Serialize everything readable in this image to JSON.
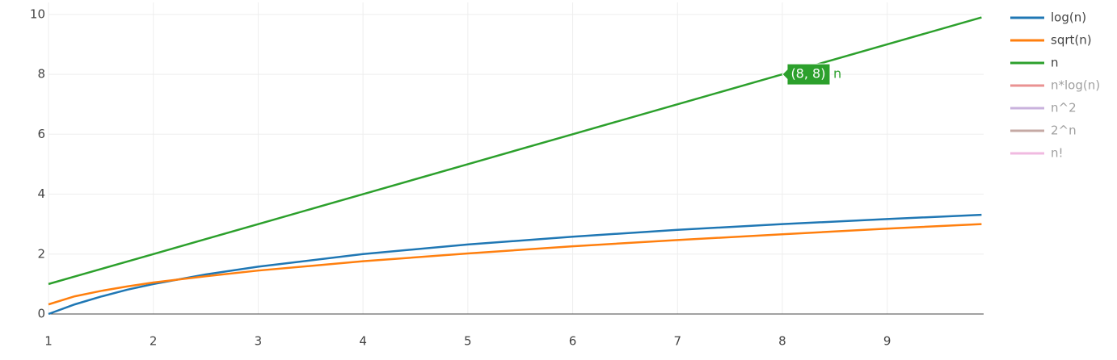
{
  "chart_data": {
    "type": "line",
    "x": [
      1,
      1.25,
      1.5,
      1.75,
      2,
      2.5,
      3,
      4,
      5,
      6,
      7,
      8,
      9,
      9.9
    ],
    "series": [
      {
        "name": "log(n)",
        "color": "#1f77b4",
        "values": [
          0,
          0.32,
          0.58,
          0.81,
          1,
          1.32,
          1.58,
          2,
          2.32,
          2.58,
          2.81,
          3,
          3.17,
          3.31
        ]
      },
      {
        "name": "sqrt(n)",
        "color": "#ff7f0e",
        "values": [
          0.32,
          0.59,
          0.77,
          0.92,
          1.05,
          1.26,
          1.45,
          1.76,
          2.02,
          2.26,
          2.47,
          2.66,
          2.85,
          3.0
        ]
      },
      {
        "name": "n",
        "color": "#2ca02c",
        "values": [
          1,
          1.25,
          1.5,
          1.75,
          2,
          2.5,
          3,
          4,
          5,
          6,
          7,
          8,
          9,
          9.9
        ]
      },
      {
        "name": "n*log(n)",
        "color": "#d62728",
        "visible": false
      },
      {
        "name": "n^2",
        "color": "#9467bd",
        "visible": false
      },
      {
        "name": "2^n",
        "color": "#8c564b",
        "visible": false
      },
      {
        "name": "n!",
        "color": "#e377c2",
        "visible": false
      }
    ],
    "xlim": [
      1,
      9.92
    ],
    "xticks": [
      1,
      2,
      3,
      4,
      5,
      6,
      7,
      8,
      9
    ],
    "ylim": [
      0,
      10.4
    ],
    "yticks": [
      0,
      2,
      4,
      6,
      8,
      10
    ],
    "grid": true,
    "hover": {
      "series": 2,
      "index": 11,
      "text": "(8, 8)"
    }
  }
}
